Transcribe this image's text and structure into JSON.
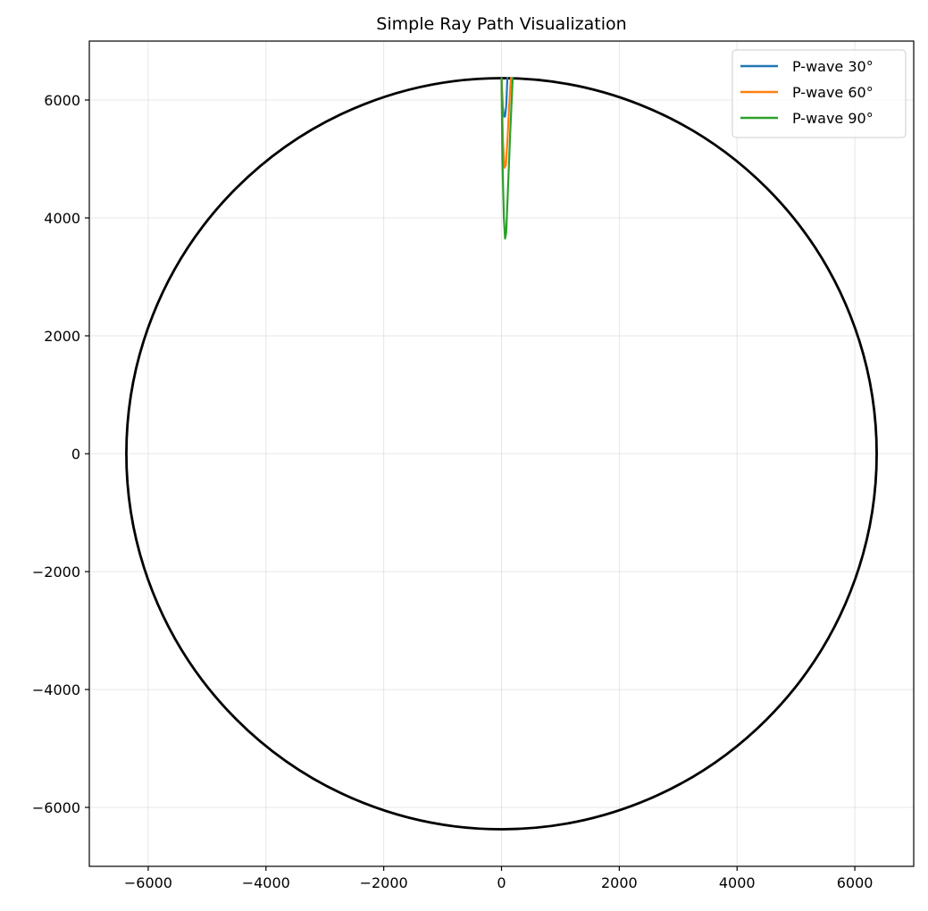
{
  "chart_data": {
    "type": "line",
    "title": "Simple Ray Path Visualization",
    "xlabel": "",
    "ylabel": "",
    "xlim": [
      -7000,
      7000
    ],
    "ylim": [
      -7000,
      7000
    ],
    "xticks": [
      -6000,
      -4000,
      -2000,
      0,
      2000,
      4000,
      6000
    ],
    "yticks": [
      -6000,
      -4000,
      -2000,
      0,
      2000,
      4000,
      6000
    ],
    "xtick_labels": [
      "−6000",
      "−4000",
      "−2000",
      "0",
      "2000",
      "4000",
      "6000"
    ],
    "ytick_labels": [
      "−6000",
      "−4000",
      "−2000",
      "0",
      "2000",
      "4000",
      "6000"
    ],
    "grid": true,
    "legend_position": "top-right",
    "earth_outline": {
      "radius": 6371,
      "color": "#000000"
    },
    "series": [
      {
        "name": "P-wave 30°",
        "color": "#1f77b4",
        "x": [
          0,
          20,
          40,
          60,
          80,
          100
        ],
        "y": [
          6371,
          5900,
          5720,
          5720,
          5900,
          6371
        ]
      },
      {
        "name": "P-wave 60°",
        "color": "#ff7f0e",
        "x": [
          0,
          25,
          50,
          75,
          100,
          130,
          160
        ],
        "y": [
          6371,
          5300,
          4850,
          4900,
          5300,
          5900,
          6371
        ]
      },
      {
        "name": "P-wave 90°",
        "color": "#2ca02c",
        "x": [
          0,
          15,
          40,
          60,
          80,
          110,
          150,
          190
        ],
        "y": [
          6371,
          5000,
          4000,
          3650,
          3750,
          4500,
          5500,
          6371
        ]
      }
    ]
  }
}
